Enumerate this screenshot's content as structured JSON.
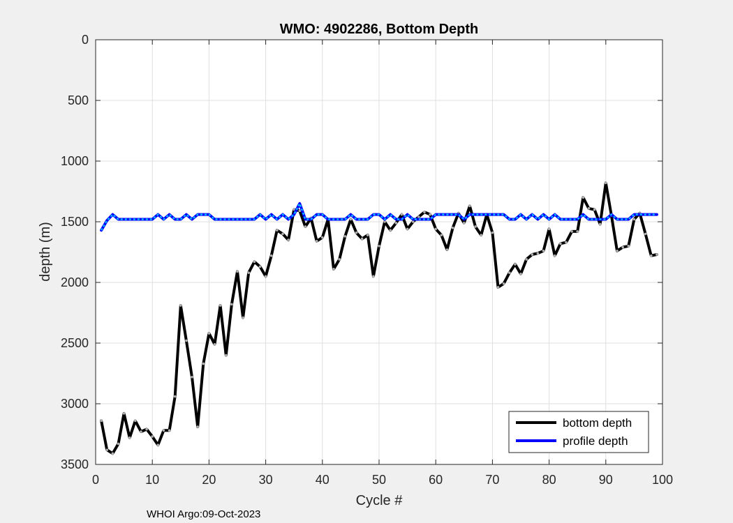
{
  "chart_data": {
    "type": "line",
    "title": "WMO: 4902286, Bottom Depth",
    "xlabel": "Cycle #",
    "ylabel": "depth (m)",
    "xlim": [
      0,
      100
    ],
    "ylim": [
      0,
      3500
    ],
    "y_reversed": true,
    "grid": true,
    "xticks": [
      0,
      10,
      20,
      30,
      40,
      50,
      60,
      70,
      80,
      90,
      100
    ],
    "yticks": [
      0,
      500,
      1000,
      1500,
      2000,
      2500,
      3000,
      3500
    ],
    "legend_position": "bottom-right",
    "series": [
      {
        "name": "bottom depth",
        "color": "#000000",
        "x": [
          1,
          2,
          3,
          4,
          5,
          6,
          7,
          8,
          9,
          10,
          11,
          12,
          13,
          14,
          15,
          16,
          17,
          18,
          19,
          20,
          21,
          22,
          23,
          24,
          25,
          26,
          27,
          28,
          29,
          30,
          31,
          32,
          33,
          34,
          35,
          36,
          37,
          38,
          39,
          40,
          41,
          42,
          43,
          44,
          45,
          46,
          47,
          48,
          49,
          50,
          51,
          52,
          53,
          54,
          55,
          56,
          57,
          58,
          59,
          60,
          61,
          62,
          63,
          64,
          65,
          66,
          67,
          68,
          69,
          70,
          71,
          72,
          73,
          74,
          75,
          76,
          77,
          78,
          79,
          80,
          81,
          82,
          83,
          84,
          85,
          86,
          87,
          88,
          89,
          90,
          91,
          92,
          93,
          94,
          95,
          96,
          97,
          98,
          99
        ],
        "y": [
          3140,
          3380,
          3410,
          3330,
          3080,
          3280,
          3140,
          3230,
          3210,
          3270,
          3340,
          3220,
          3220,
          2940,
          2190,
          2480,
          2780,
          3190,
          2670,
          2420,
          2510,
          2190,
          2600,
          2180,
          1910,
          2290,
          1920,
          1830,
          1870,
          1950,
          1780,
          1570,
          1600,
          1650,
          1400,
          1410,
          1540,
          1470,
          1660,
          1630,
          1480,
          1890,
          1810,
          1620,
          1480,
          1590,
          1640,
          1610,
          1950,
          1700,
          1500,
          1570,
          1510,
          1440,
          1560,
          1500,
          1460,
          1420,
          1440,
          1560,
          1610,
          1730,
          1550,
          1430,
          1510,
          1370,
          1540,
          1610,
          1440,
          1590,
          2040,
          2010,
          1920,
          1850,
          1930,
          1810,
          1770,
          1760,
          1740,
          1560,
          1780,
          1680,
          1670,
          1580,
          1580,
          1300,
          1390,
          1400,
          1520,
          1180,
          1450,
          1740,
          1710,
          1700,
          1480,
          1430,
          1600,
          1780,
          1770
        ]
      },
      {
        "name": "profile depth",
        "color": "#0000ff",
        "x": [
          1,
          2,
          3,
          4,
          5,
          6,
          7,
          8,
          9,
          10,
          11,
          12,
          13,
          14,
          15,
          16,
          17,
          18,
          19,
          20,
          21,
          22,
          23,
          24,
          25,
          26,
          27,
          28,
          29,
          30,
          31,
          32,
          33,
          34,
          35,
          36,
          37,
          38,
          39,
          40,
          41,
          42,
          43,
          44,
          45,
          46,
          47,
          48,
          49,
          50,
          51,
          52,
          53,
          54,
          55,
          56,
          57,
          58,
          59,
          60,
          61,
          62,
          63,
          64,
          65,
          66,
          67,
          68,
          69,
          70,
          71,
          72,
          73,
          74,
          75,
          76,
          77,
          78,
          79,
          80,
          81,
          82,
          83,
          84,
          85,
          86,
          87,
          88,
          89,
          90,
          91,
          92,
          93,
          94,
          95,
          96,
          97,
          98,
          99
        ],
        "y": [
          1570,
          1490,
          1440,
          1480,
          1480,
          1480,
          1480,
          1480,
          1480,
          1480,
          1440,
          1480,
          1440,
          1480,
          1480,
          1440,
          1480,
          1440,
          1440,
          1440,
          1480,
          1480,
          1480,
          1480,
          1480,
          1480,
          1480,
          1480,
          1440,
          1480,
          1440,
          1480,
          1440,
          1480,
          1440,
          1350,
          1480,
          1480,
          1440,
          1440,
          1480,
          1480,
          1480,
          1480,
          1440,
          1480,
          1480,
          1480,
          1440,
          1440,
          1480,
          1440,
          1480,
          1480,
          1440,
          1480,
          1480,
          1480,
          1480,
          1440,
          1440,
          1440,
          1440,
          1440,
          1480,
          1440,
          1440,
          1440,
          1440,
          1440,
          1440,
          1440,
          1480,
          1480,
          1440,
          1480,
          1440,
          1480,
          1440,
          1480,
          1440,
          1480,
          1480,
          1480,
          1480,
          1440,
          1480,
          1480,
          1480,
          1480,
          1440,
          1480,
          1480,
          1480,
          1440,
          1440,
          1440,
          1440,
          1440
        ]
      }
    ]
  },
  "footer": {
    "caption": "WHOI Argo:09-Oct-2023"
  },
  "colors": {
    "figure_bg": "#f0f0f0",
    "axes_bg": "#ffffff",
    "grid": "#dfdfdf",
    "marker_gray": "#b0b0b0",
    "profile_cyan": "#00c8ff"
  }
}
